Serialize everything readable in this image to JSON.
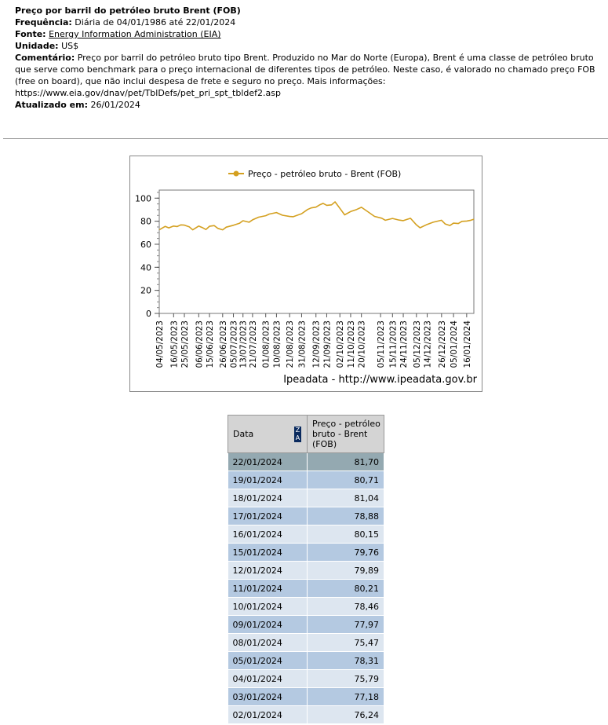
{
  "meta": {
    "title": "Preço por barril do petróleo bruto Brent (FOB)",
    "freq_label": "Frequência:",
    "freq_value": " Diária de 04/01/1986 até 22/01/2024",
    "source_label": "Fonte:",
    "source_link": "Energy Information Administration (EIA)",
    "unit_label": "Unidade:",
    "unit_value": " US$",
    "comment_label": "Comentário:",
    "comment_value": " Preço por barril do petróleo bruto tipo Brent. Produzido no Mar do Norte (Europa), Brent é uma classe de petróleo bruto que serve como benchmark para o preço internacional de diferentes tipos de petróleo. Neste caso, é valorado no chamado preço FOB (free on board), que não inclui despesa de frete e seguro no preço. Mais informações: https://www.eia.gov/dnav/pet/TblDefs/pet_pri_spt_tbldef2.asp",
    "updated_label": "Atualizado em:",
    "updated_value": " 26/01/2024"
  },
  "chart_credit": "Ipeadata - http://www.ipeadata.gov.br",
  "colors": {
    "line": "#d4a020",
    "plot_border": "#777777",
    "grid": "#dddddd"
  },
  "chart_data": {
    "type": "line",
    "series": [
      {
        "name": "Preço - petróleo bruto - Brent (FOB)",
        "x": [
          "04/05/2023",
          "09/05/2023",
          "12/05/2023",
          "16/05/2023",
          "19/05/2023",
          "22/05/2023",
          "25/05/2023",
          "29/05/2023",
          "01/06/2023",
          "06/06/2023",
          "09/06/2023",
          "12/06/2023",
          "15/06/2023",
          "19/06/2023",
          "22/06/2023",
          "26/06/2023",
          "29/06/2023",
          "05/07/2023",
          "10/07/2023",
          "13/07/2023",
          "18/07/2023",
          "21/07/2023",
          "26/07/2023",
          "01/08/2023",
          "04/08/2023",
          "10/08/2023",
          "15/08/2023",
          "21/08/2023",
          "24/08/2023",
          "31/08/2023",
          "05/09/2023",
          "08/09/2023",
          "12/09/2023",
          "15/09/2023",
          "18/09/2023",
          "21/09/2023",
          "25/09/2023",
          "28/09/2023",
          "02/10/2023",
          "06/10/2023",
          "11/10/2023",
          "16/10/2023",
          "20/10/2023",
          "25/10/2023",
          "31/10/2023",
          "06/11/2023",
          "09/11/2023",
          "15/11/2023",
          "20/11/2023",
          "24/11/2023",
          "30/11/2023",
          "05/12/2023",
          "08/12/2023",
          "14/12/2023",
          "19/12/2023",
          "26/12/2023",
          "29/12/2023",
          "02/01/2024",
          "05/01/2024",
          "09/01/2024",
          "12/01/2024",
          "16/01/2024",
          "19/01/2024",
          "22/01/2024"
        ],
        "values": [
          72.5,
          75.5,
          74.2,
          75.8,
          75.4,
          76.8,
          76.6,
          75.2,
          72.5,
          75.8,
          74.5,
          72.8,
          75.6,
          76.2,
          73.8,
          72.5,
          74.8,
          76.5,
          78.2,
          80.4,
          79.1,
          81.2,
          83.5,
          84.8,
          86.2,
          87.5,
          85.2,
          84.1,
          83.9,
          86.5,
          90.2,
          91.5,
          92.2,
          94.1,
          95.5,
          93.8,
          94.2,
          96.8,
          91.2,
          85.5,
          88.4,
          90.2,
          92.1,
          88.5,
          84.2,
          82.6,
          80.8,
          82.4,
          81.1,
          80.5,
          82.5,
          76.8,
          74.3,
          77.2,
          79.1,
          80.8,
          77.6,
          76.24,
          78.31,
          77.97,
          79.89,
          80.15,
          80.71,
          81.7
        ]
      }
    ],
    "xticks": [
      "04/05/2023",
      "16/05/2023",
      "25/05/2023",
      "06/06/2023",
      "15/06/2023",
      "26/06/2023",
      "05/07/2023",
      "13/07/2023",
      "21/07/2023",
      "01/08/2023",
      "10/08/2023",
      "21/08/2023",
      "31/08/2023",
      "12/09/2023",
      "21/09/2023",
      "02/10/2023",
      "11/10/2023",
      "20/10/2023",
      "05/11/2023",
      "15/11/2023",
      "24/11/2023",
      "05/12/2023",
      "14/12/2023",
      "26/12/2023",
      "05/01/2024",
      "16/01/2024"
    ],
    "yticks": [
      0,
      20,
      40,
      60,
      80,
      100
    ],
    "ylim": [
      0,
      107
    ],
    "grid": false,
    "legend": "top-center"
  },
  "table": {
    "col_date": "Data",
    "sort_glyph": "Z A",
    "col_value": "Preço - petróleo bruto - Brent (FOB)",
    "rows": [
      {
        "date": "22/01/2024",
        "value": "81,70"
      },
      {
        "date": "19/01/2024",
        "value": "80,71"
      },
      {
        "date": "18/01/2024",
        "value": "81,04"
      },
      {
        "date": "17/01/2024",
        "value": "78,88"
      },
      {
        "date": "16/01/2024",
        "value": "80,15"
      },
      {
        "date": "15/01/2024",
        "value": "79,76"
      },
      {
        "date": "12/01/2024",
        "value": "79,89"
      },
      {
        "date": "11/01/2024",
        "value": "80,21"
      },
      {
        "date": "10/01/2024",
        "value": "78,46"
      },
      {
        "date": "09/01/2024",
        "value": "77,97"
      },
      {
        "date": "08/01/2024",
        "value": "75,47"
      },
      {
        "date": "05/01/2024",
        "value": "78,31"
      },
      {
        "date": "04/01/2024",
        "value": "75,79"
      },
      {
        "date": "03/01/2024",
        "value": "77,18"
      },
      {
        "date": "02/01/2024",
        "value": "76,24"
      }
    ]
  }
}
